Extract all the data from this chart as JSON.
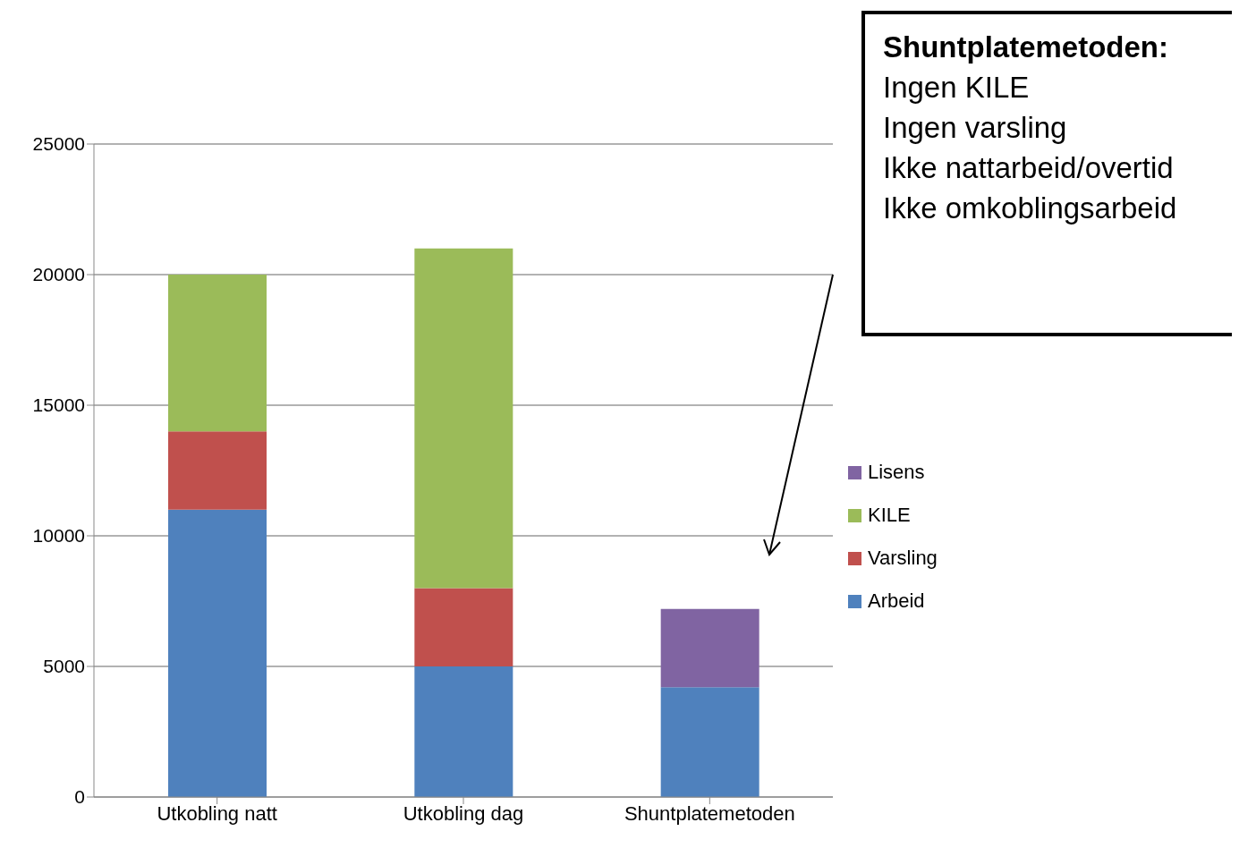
{
  "chart_data": {
    "type": "bar",
    "stacked": true,
    "categories": [
      "Utkobling natt",
      "Utkobling dag",
      "Shuntplatemetoden"
    ],
    "series": [
      {
        "name": "Arbeid",
        "color": "#4f81bd",
        "values": [
          11000,
          5000,
          4200
        ]
      },
      {
        "name": "Varsling",
        "color": "#c0504d",
        "values": [
          3000,
          3000,
          null
        ]
      },
      {
        "name": "KILE",
        "color": "#9bbb59",
        "values": [
          6000,
          13000,
          null
        ]
      },
      {
        "name": "Lisens",
        "color": "#8064a2",
        "values": [
          null,
          null,
          3000
        ]
      }
    ],
    "ylim": [
      0,
      25000
    ],
    "yticks": [
      0,
      5000,
      10000,
      15000,
      20000,
      25000
    ],
    "grid": "y",
    "legend": "right",
    "annotations": [
      "Shuntplatemetoden:",
      "Ingen KILE",
      "Ingen varsling",
      "Ikke nattarbeid/overtid",
      "Ikke omkoblingsarbeid"
    ]
  }
}
